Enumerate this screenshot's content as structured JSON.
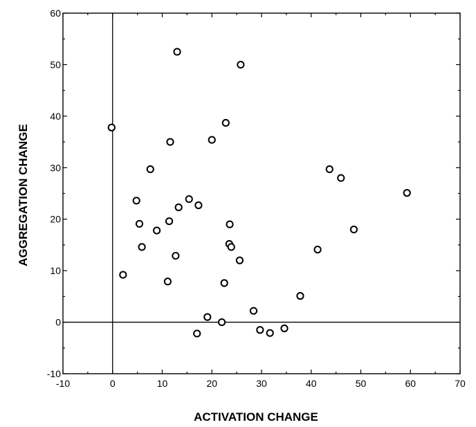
{
  "chart_data": {
    "type": "scatter",
    "title": "",
    "xlabel": "ACTIVATION CHANGE",
    "ylabel": "AGGREGATION CHANGE",
    "xlim": [
      -10,
      70
    ],
    "ylim": [
      -10,
      60
    ],
    "xticks": [
      -10,
      0,
      10,
      20,
      30,
      40,
      50,
      60,
      70
    ],
    "yticks": [
      -10,
      0,
      10,
      20,
      30,
      40,
      50,
      60
    ],
    "xtick_labels": [
      "-10",
      "0",
      "10",
      "20",
      "30",
      "40",
      "50",
      "60",
      "70"
    ],
    "ytick_labels": [
      "-10",
      "0",
      "10",
      "20",
      "30",
      "40",
      "50",
      "60"
    ],
    "reference_lines": {
      "x": 0,
      "y": 0
    },
    "grid": false,
    "marker": "open-circle",
    "points": [
      {
        "x": -0.2,
        "y": 37.8
      },
      {
        "x": 13.0,
        "y": 52.5
      },
      {
        "x": 25.8,
        "y": 50.0
      },
      {
        "x": 22.8,
        "y": 38.7
      },
      {
        "x": 20.0,
        "y": 35.4
      },
      {
        "x": 11.6,
        "y": 35.0
      },
      {
        "x": 7.6,
        "y": 29.7
      },
      {
        "x": 43.7,
        "y": 29.7
      },
      {
        "x": 46.0,
        "y": 28.0
      },
      {
        "x": 59.3,
        "y": 25.1
      },
      {
        "x": 4.8,
        "y": 23.6
      },
      {
        "x": 15.4,
        "y": 23.9
      },
      {
        "x": 13.3,
        "y": 22.3
      },
      {
        "x": 17.3,
        "y": 22.7
      },
      {
        "x": 5.4,
        "y": 19.1
      },
      {
        "x": 11.4,
        "y": 19.6
      },
      {
        "x": 23.6,
        "y": 19.0
      },
      {
        "x": 8.9,
        "y": 17.8
      },
      {
        "x": 48.6,
        "y": 18.0
      },
      {
        "x": 5.9,
        "y": 14.6
      },
      {
        "x": 23.5,
        "y": 15.2
      },
      {
        "x": 23.9,
        "y": 14.6
      },
      {
        "x": 41.3,
        "y": 14.1
      },
      {
        "x": 12.7,
        "y": 12.9
      },
      {
        "x": 25.6,
        "y": 12.0
      },
      {
        "x": 2.1,
        "y": 9.2
      },
      {
        "x": 11.1,
        "y": 7.9
      },
      {
        "x": 22.5,
        "y": 7.6
      },
      {
        "x": 37.8,
        "y": 5.1
      },
      {
        "x": 28.4,
        "y": 2.2
      },
      {
        "x": 19.1,
        "y": 1.0
      },
      {
        "x": 22.0,
        "y": 0.0
      },
      {
        "x": 17.0,
        "y": -2.2
      },
      {
        "x": 29.7,
        "y": -1.5
      },
      {
        "x": 31.7,
        "y": -2.1
      },
      {
        "x": 34.6,
        "y": -1.2
      }
    ]
  }
}
